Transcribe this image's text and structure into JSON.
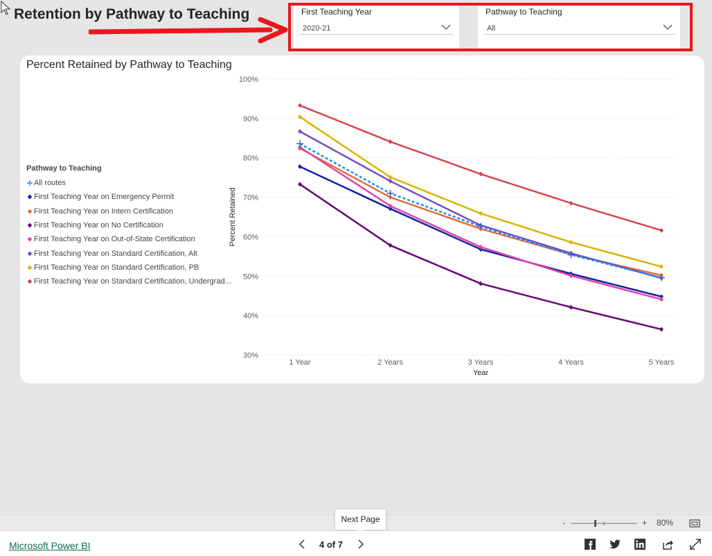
{
  "page": {
    "heading": "Retention by Pathway to Teaching"
  },
  "slicers": [
    {
      "title": "First Teaching Year",
      "value": "2020-21"
    },
    {
      "title": "Pathway to Teaching",
      "value": "All"
    }
  ],
  "chart_data": {
    "type": "line",
    "title": "Percent Retained by Pathway to Teaching",
    "xlabel": "Year",
    "ylabel": "Percent Retained",
    "categories": [
      "1 Year",
      "2 Years",
      "3 Years",
      "4 Years",
      "5 Years"
    ],
    "yticks": [
      "30%",
      "40%",
      "50%",
      "60%",
      "70%",
      "80%",
      "90%",
      "100%"
    ],
    "ylim": [
      30,
      100
    ],
    "grid": true,
    "legend_title": "Pathway to Teaching",
    "legend_position": "left",
    "series": [
      {
        "name": "All routes",
        "color": "#118dff",
        "marker": "plus",
        "dashed": true,
        "values": [
          83.6,
          71.0,
          62.6,
          55.4,
          49.6
        ]
      },
      {
        "name": "First Teaching Year on Emergency Permit",
        "color": "#12239e",
        "marker": "diamond",
        "values": [
          77.8,
          67.1,
          56.8,
          50.6,
          44.8
        ]
      },
      {
        "name": "First Teaching Year on Intern Certification",
        "color": "#e66c37",
        "marker": "diamond",
        "values": [
          82.4,
          70.0,
          62.0,
          55.5,
          50.2
        ]
      },
      {
        "name": "First Teaching Year on No Certification",
        "color": "#6b007b",
        "marker": "diamond",
        "values": [
          73.3,
          57.8,
          48.1,
          42.1,
          36.5
        ]
      },
      {
        "name": "First Teaching Year on Out-of-State Certification",
        "color": "#e044a7",
        "marker": "diamond",
        "values": [
          82.7,
          67.8,
          57.4,
          50.1,
          44.1
        ]
      },
      {
        "name": "First Teaching Year on Standard Certification, Alt",
        "color": "#744ec2",
        "marker": "diamond",
        "values": [
          86.7,
          74.1,
          62.9,
          55.8,
          49.5
        ]
      },
      {
        "name": "First Teaching Year on Standard Certification, PB",
        "color": "#d9b300",
        "marker": "diamond",
        "values": [
          90.4,
          75.1,
          65.9,
          58.6,
          52.4
        ]
      },
      {
        "name": "First Teaching Year on Standard Certification, Undergrad...",
        "color": "#d64550",
        "marker": "diamond",
        "values": [
          93.3,
          84.1,
          75.9,
          68.5,
          61.6
        ]
      }
    ]
  },
  "footer": {
    "brand_link": "Microsoft Power BI",
    "page_indicator": "4 of 7",
    "tooltip": "Next Page",
    "zoom_level": "80%",
    "zoom_minus": "-",
    "zoom_plus": "+"
  },
  "icons": {
    "prev": "chevron-left-icon",
    "next": "chevron-right-icon",
    "share": [
      "facebook-icon",
      "twitter-icon",
      "linkedin-icon",
      "share-icon",
      "fullscreen-icon"
    ],
    "fit": "fit-to-page-icon"
  },
  "colors": {
    "highlight_frame": "#e8181e",
    "arrow": "#e8181e"
  }
}
